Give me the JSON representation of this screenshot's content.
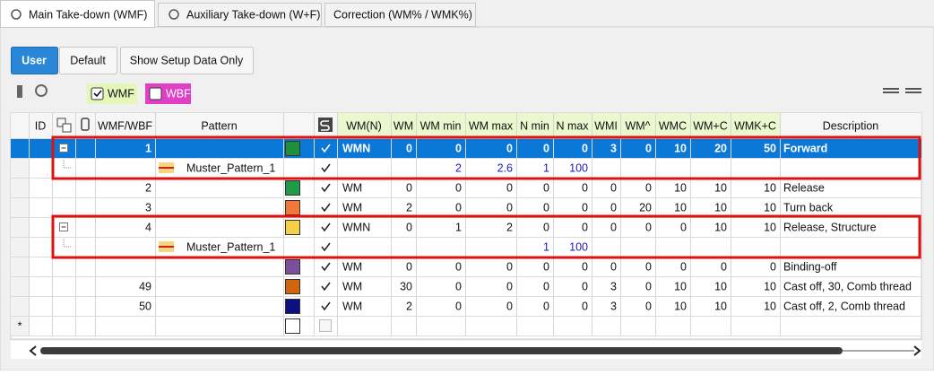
{
  "tabs": [
    "Main Take-down (WMF)",
    "Auxiliary Take-down (W+F)",
    "Correction (WM% / WMK%)"
  ],
  "active_tab": 0,
  "toolbar": {
    "buttons": [
      "User",
      "Default",
      "Show Setup Data Only"
    ],
    "active_button": 0,
    "checkboxes": [
      {
        "label": "WMF",
        "checked": true,
        "color": "#e4f7b8"
      },
      {
        "label": "WBF",
        "checked": false,
        "color": "#e040c8"
      }
    ]
  },
  "table": {
    "headers": {
      "id": "ID",
      "wmf_wbf": "WMF/WBF",
      "pattern": "Pattern",
      "wm_n": "WM(N)",
      "values": [
        "WM",
        "WM min",
        "WM max",
        "N min",
        "N max",
        "WMI",
        "WM^",
        "WMC",
        "WM+C",
        "WMK+C"
      ],
      "description": "Description"
    },
    "rows": [
      {
        "tree": "expanded",
        "wmf_wbf": 1,
        "color": "#1e8f3c",
        "checked": true,
        "wm_n": "WMN",
        "values": [
          0,
          0,
          0,
          0,
          0,
          3,
          0,
          10,
          20,
          50
        ],
        "description": "Forward",
        "selected": true
      },
      {
        "tree": "child",
        "pattern": "Muster_Pattern_1",
        "checked": true,
        "values": [
          null,
          2,
          2.6,
          1,
          100,
          null,
          null,
          null,
          null,
          null
        ]
      },
      {
        "wmf_wbf": 2,
        "color": "#1e9a48",
        "checked": true,
        "wm_n": "WM",
        "values": [
          0,
          0,
          0,
          0,
          0,
          0,
          0,
          10,
          10,
          10
        ],
        "description": "Release"
      },
      {
        "wmf_wbf": 3,
        "color": "#f07838",
        "checked": true,
        "wm_n": "WM",
        "values": [
          2,
          0,
          0,
          0,
          0,
          0,
          20,
          10,
          10,
          10
        ],
        "description": "Turn back"
      },
      {
        "tree": "expanded",
        "wmf_wbf": 4,
        "color": "#f5cf48",
        "checked": true,
        "wm_n": "WMN",
        "values": [
          0,
          1,
          2,
          0,
          0,
          0,
          0,
          0,
          10,
          10
        ],
        "description": "Release, Structure"
      },
      {
        "tree": "child",
        "pattern": "Muster_Pattern_1",
        "checked": true,
        "values": [
          null,
          null,
          null,
          1,
          100,
          null,
          null,
          null,
          null,
          null
        ]
      },
      {
        "color": "#7b4f9a",
        "checked": true,
        "wm_n": "WM",
        "values": [
          0,
          0,
          0,
          0,
          0,
          0,
          0,
          0,
          0,
          0
        ],
        "description": "Binding-off"
      },
      {
        "wmf_wbf": 49,
        "color": "#d2640e",
        "checked": true,
        "wm_n": "WM",
        "values": [
          30,
          0,
          0,
          0,
          0,
          3,
          0,
          10,
          10,
          10
        ],
        "description": "Cast off, 30, Comb thread"
      },
      {
        "wmf_wbf": 50,
        "color": "#0b0f80",
        "checked": true,
        "wm_n": "WM",
        "values": [
          2,
          0,
          0,
          0,
          0,
          3,
          0,
          10,
          10,
          10
        ],
        "description": "Cast off, 2, Comb thread"
      },
      {
        "marker": "*",
        "color": "#ffffff",
        "checked": false
      }
    ]
  }
}
